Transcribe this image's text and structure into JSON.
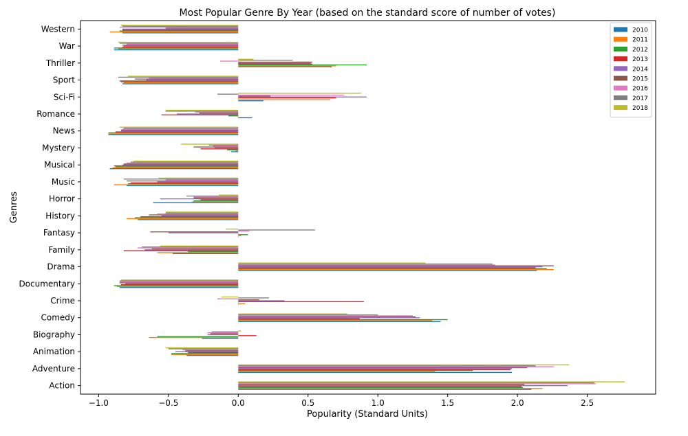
{
  "chart_data": {
    "type": "bar",
    "orientation": "horizontal",
    "title": "Most Popular Genre By Year (based on the standard score of number of votes)",
    "xlabel": "Popularity (Standard Units)",
    "ylabel": "Genres",
    "xlim": [
      -1.13,
      2.99
    ],
    "xticks": [
      -1.0,
      -0.5,
      0.0,
      0.5,
      1.0,
      1.5,
      2.0,
      2.5
    ],
    "xtick_labels": [
      "−1.0",
      "−0.5",
      "0.0",
      "0.5",
      "1.0",
      "1.5",
      "2.0",
      "2.5"
    ],
    "grid": false,
    "legend_position": "top-right",
    "categories": [
      "Action",
      "Adventure",
      "Animation",
      "Biography",
      "Comedy",
      "Crime",
      "Documentary",
      "Drama",
      "Family",
      "Fantasy",
      "History",
      "Horror",
      "Music",
      "Musical",
      "Mystery",
      "News",
      "Romance",
      "Sci-Fi",
      "Sport",
      "Thriller",
      "War",
      "Western"
    ],
    "series": [
      {
        "name": "2010",
        "color": "#1f77b4",
        "values": [
          2.1,
          1.96,
          -0.37,
          -0.26,
          1.45,
          0.0,
          -0.85,
          2.14,
          -0.47,
          0.0,
          -0.72,
          -0.61,
          -0.8,
          -0.92,
          -0.05,
          -0.93,
          0.1,
          0.18,
          -0.83,
          0.67,
          -0.89,
          -0.83
        ]
      },
      {
        "name": "2011",
        "color": "#ff7f0e",
        "values": [
          2.18,
          1.41,
          -0.48,
          -0.64,
          1.39,
          0.05,
          -0.87,
          2.26,
          -0.58,
          0.02,
          -0.8,
          -0.33,
          -0.89,
          -0.9,
          -0.02,
          -0.93,
          0.0,
          0.66,
          -0.82,
          0.7,
          -0.86,
          -0.92
        ]
      },
      {
        "name": "2012",
        "color": "#2ca02c",
        "values": [
          2.04,
          1.68,
          -0.48,
          -0.58,
          1.5,
          0.0,
          -0.89,
          2.21,
          -0.36,
          0.07,
          -0.74,
          -0.32,
          -0.79,
          -0.88,
          -0.08,
          -0.93,
          -0.07,
          0.0,
          -0.84,
          0.92,
          -0.89,
          -0.85
        ]
      },
      {
        "name": "2013",
        "color": "#d62728",
        "values": [
          2.03,
          1.95,
          -0.36,
          0.13,
          0.87,
          0.9,
          -0.84,
          2.13,
          -0.82,
          0.0,
          -0.7,
          -0.27,
          -0.77,
          -0.89,
          -0.27,
          -0.88,
          -0.55,
          0.7,
          -0.85,
          0.53,
          -0.83,
          -0.83
        ]
      },
      {
        "name": "2014",
        "color": "#9467bd",
        "values": [
          2.36,
          1.96,
          -0.45,
          -0.22,
          1.3,
          0.33,
          -0.81,
          2.18,
          -0.67,
          -0.5,
          -0.55,
          -0.56,
          -0.58,
          -0.83,
          -0.17,
          -0.84,
          -0.44,
          0.92,
          -0.66,
          0.52,
          -0.82,
          -0.83
        ]
      },
      {
        "name": "2015",
        "color": "#8c564b",
        "values": [
          2.05,
          2.07,
          -0.38,
          -0.2,
          1.27,
          0.15,
          -0.85,
          2.26,
          -0.62,
          -0.63,
          -0.64,
          -0.32,
          -0.8,
          -0.82,
          -0.32,
          -0.84,
          -0.28,
          0.23,
          -0.74,
          0.53,
          -0.83,
          -0.52
        ]
      },
      {
        "name": "2016",
        "color": "#e377c2",
        "values": [
          2.56,
          2.26,
          -0.4,
          -0.22,
          1.25,
          -0.15,
          -0.85,
          1.84,
          -0.72,
          0.08,
          -0.58,
          -0.32,
          -0.52,
          -0.8,
          -0.18,
          -0.83,
          -0.31,
          0.76,
          -0.64,
          -0.13,
          -0.8,
          -0.85
        ]
      },
      {
        "name": "2017",
        "color": "#7f7f7f",
        "values": [
          2.55,
          2.13,
          -0.5,
          -0.19,
          1.0,
          0.22,
          -0.85,
          1.82,
          -0.69,
          0.55,
          -0.52,
          -0.37,
          -0.82,
          -0.77,
          -0.21,
          -0.82,
          -0.52,
          -0.15,
          -0.86,
          0.39,
          -0.85,
          -0.83
        ]
      },
      {
        "name": "2018",
        "color": "#bcbd22",
        "values": [
          2.77,
          2.37,
          -0.52,
          0.02,
          0.78,
          -0.12,
          -0.84,
          1.34,
          -0.56,
          -0.09,
          -0.52,
          -0.14,
          -0.57,
          -0.75,
          -0.41,
          -0.85,
          -0.52,
          0.88,
          -0.79,
          0.11,
          -0.86,
          -0.84
        ]
      }
    ]
  }
}
